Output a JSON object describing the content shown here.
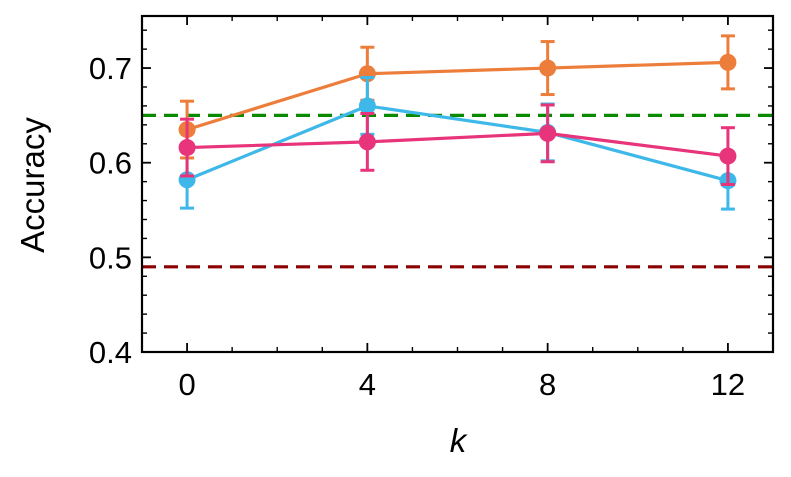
{
  "chart_data": {
    "type": "line",
    "title": "",
    "xlabel": "k",
    "ylabel": "Accuracy",
    "xlim": [
      -1,
      13
    ],
    "ylim": [
      0.4,
      0.755
    ],
    "grid": false,
    "x_ticks": [
      0,
      4,
      8,
      12
    ],
    "x_tick_labels": [
      "0",
      "4",
      "8",
      "12"
    ],
    "y_ticks": [
      0.4,
      0.5,
      0.6,
      0.7
    ],
    "y_tick_labels": [
      "0.4",
      "0.5",
      "0.6",
      "0.7"
    ],
    "series": [
      {
        "color": "#ED7D3A",
        "x": [
          0,
          4,
          8,
          12
        ],
        "values": [
          0.635,
          0.694,
          0.7,
          0.706
        ],
        "errors": [
          0.03,
          0.028,
          0.028,
          0.028
        ]
      },
      {
        "color": "#3DB8E8",
        "x": [
          0,
          4,
          8,
          12
        ],
        "values": [
          0.582,
          0.66,
          0.632,
          0.581
        ],
        "errors": [
          0.03,
          0.03,
          0.03,
          0.03
        ]
      },
      {
        "color": "#E8347A",
        "x": [
          0,
          4,
          8,
          12
        ],
        "values": [
          0.616,
          0.622,
          0.631,
          0.607
        ],
        "errors": [
          0.03,
          0.03,
          0.03,
          0.03
        ]
      }
    ],
    "reference_lines": [
      {
        "value": 0.65,
        "color": "#0A8A00",
        "style": "dashed"
      },
      {
        "value": 0.49,
        "color": "#8B0000",
        "style": "dashed"
      }
    ]
  }
}
